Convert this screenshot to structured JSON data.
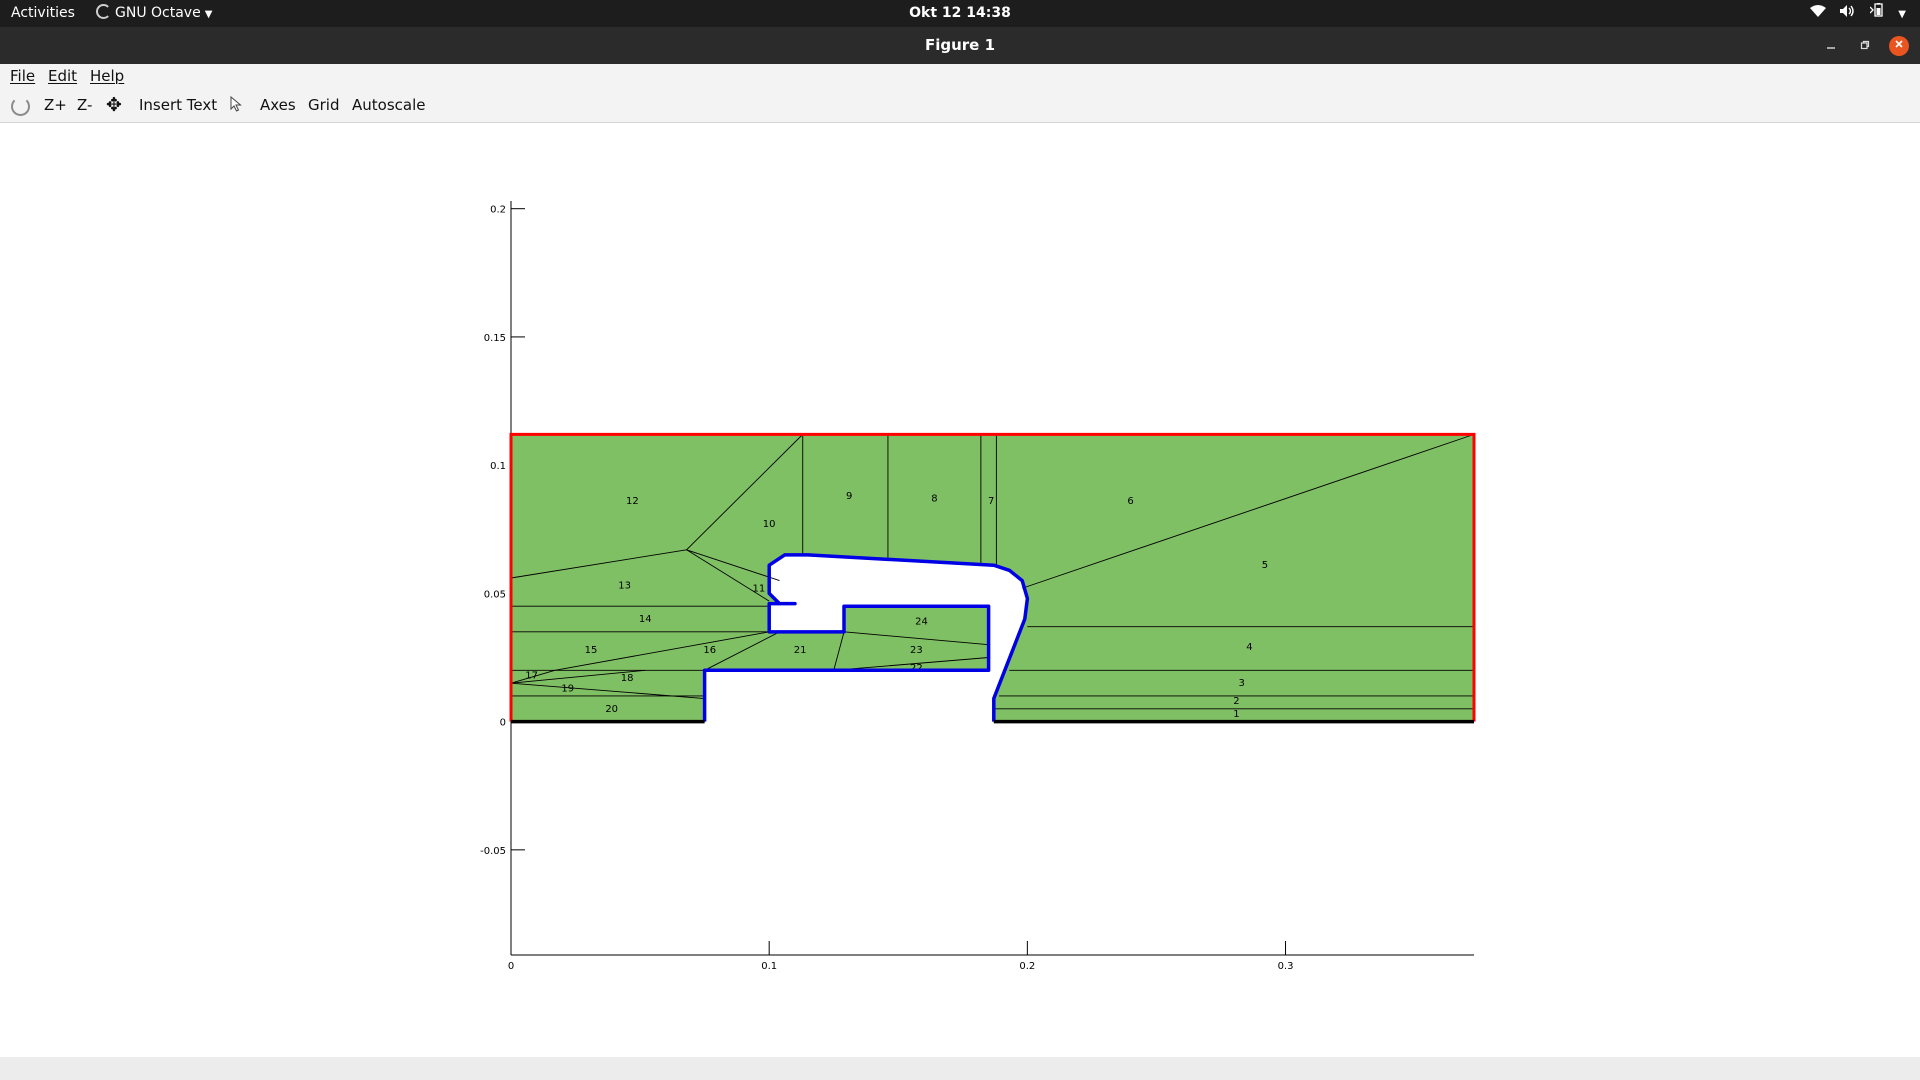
{
  "topbar": {
    "activities": "Activities",
    "app_name": "GNU Octave",
    "clock": "Okt 12  14:38"
  },
  "window": {
    "title": "Figure 1"
  },
  "menubar": {
    "file": "File",
    "edit": "Edit",
    "help": "Help"
  },
  "toolbar": {
    "zoom_in": "Z+",
    "zoom_out": "Z-",
    "insert_text": "Insert Text",
    "axes": "Axes",
    "grid": "Grid",
    "autoscale": "Autoscale"
  },
  "icons": {
    "rotate": "rotate-icon",
    "pan": "pan-move-icon",
    "select": "select-pointer-icon",
    "wifi": "wifi-icon",
    "volume": "volume-icon",
    "battery": "battery-icon"
  },
  "colors": {
    "fill": "#80c064",
    "outer_boundary": "#ff0000",
    "inner_boundary": "#0000e6",
    "close_button": "#e95420"
  },
  "chart_data": {
    "type": "mesh",
    "x_ticks": [
      "0",
      "0.1",
      "0.2",
      "0.3"
    ],
    "y_ticks": [
      "0.2",
      "0.15",
      "0.1",
      "0.05",
      "0",
      "-0.05"
    ],
    "xlim": [
      0,
      0.373
    ],
    "ylim": [
      -0.091,
      0.203
    ],
    "outer_boundary": [
      [
        0,
        0.112
      ],
      [
        0.373,
        0.112
      ],
      [
        0.373,
        0
      ],
      [
        0.187,
        0
      ],
      [
        0.187,
        0.009
      ],
      [
        0.199,
        0.04
      ],
      [
        0.2,
        0.048
      ],
      [
        0.198,
        0.055
      ],
      [
        0.193,
        0.059
      ],
      [
        0.187,
        0.061
      ],
      [
        0.115,
        0.065
      ],
      [
        0.106,
        0.065
      ],
      [
        0.1,
        0.061
      ],
      [
        0.1,
        0.05
      ],
      [
        0.104,
        0.046
      ],
      [
        0.11,
        0.046
      ],
      [
        0.1,
        0.046
      ],
      [
        0.1,
        0.035
      ],
      [
        0.129,
        0.035
      ],
      [
        0.129,
        0.045
      ],
      [
        0.185,
        0.045
      ],
      [
        0.185,
        0.02
      ],
      [
        0.075,
        0.02
      ],
      [
        0.075,
        0
      ],
      [
        0,
        0
      ]
    ],
    "inner_boundary": [
      [
        0.075,
        0
      ],
      [
        0.075,
        0.02
      ],
      [
        0.1,
        0.02
      ],
      [
        0.125,
        0.02
      ],
      [
        0.185,
        0.02
      ],
      [
        0.185,
        0.045
      ],
      [
        0.129,
        0.045
      ],
      [
        0.129,
        0.035
      ],
      [
        0.1,
        0.035
      ],
      [
        0.1,
        0.046
      ],
      [
        0.11,
        0.046
      ],
      [
        0.104,
        0.046
      ],
      [
        0.1,
        0.05
      ],
      [
        0.1,
        0.061
      ],
      [
        0.106,
        0.065
      ],
      [
        0.115,
        0.065
      ],
      [
        0.187,
        0.061
      ],
      [
        0.193,
        0.059
      ],
      [
        0.198,
        0.055
      ],
      [
        0.2,
        0.048
      ],
      [
        0.199,
        0.04
      ],
      [
        0.187,
        0.009
      ],
      [
        0.187,
        0
      ]
    ],
    "red_boundary": [
      [
        0,
        0
      ],
      [
        0,
        0.112
      ],
      [
        0.373,
        0.112
      ],
      [
        0.373,
        0
      ]
    ],
    "bottom_edges": [
      [
        [
          0,
          0
        ],
        [
          0.075,
          0
        ]
      ],
      [
        [
          0.187,
          0
        ],
        [
          0.373,
          0
        ]
      ]
    ],
    "mesh_edges": [
      [
        [
          0,
          0.056
        ],
        [
          0.068,
          0.067
        ]
      ],
      [
        [
          0.068,
          0.067
        ],
        [
          0.113,
          0.112
        ]
      ],
      [
        [
          0.068,
          0.067
        ],
        [
          0.1,
          0.047
        ]
      ],
      [
        [
          0.068,
          0.067
        ],
        [
          0.104,
          0.055
        ]
      ],
      [
        [
          0.113,
          0.112
        ],
        [
          0.113,
          0.065
        ]
      ],
      [
        [
          0.146,
          0.112
        ],
        [
          0.146,
          0.063
        ]
      ],
      [
        [
          0.182,
          0.112
        ],
        [
          0.182,
          0.061
        ]
      ],
      [
        [
          0.188,
          0.112
        ],
        [
          0.188,
          0.061
        ]
      ],
      [
        [
          0.198,
          0.052
        ],
        [
          0.373,
          0.112
        ]
      ],
      [
        [
          0.2,
          0.037
        ],
        [
          0.373,
          0.037
        ]
      ],
      [
        [
          0.193,
          0.02
        ],
        [
          0.373,
          0.02
        ]
      ],
      [
        [
          0.189,
          0.01
        ],
        [
          0.373,
          0.01
        ]
      ],
      [
        [
          0.187,
          0.005
        ],
        [
          0.373,
          0.005
        ]
      ],
      [
        [
          0,
          0.045
        ],
        [
          0.1,
          0.045
        ]
      ],
      [
        [
          0,
          0.035
        ],
        [
          0.1,
          0.035
        ]
      ],
      [
        [
          0,
          0.02
        ],
        [
          0.075,
          0.02
        ]
      ],
      [
        [
          0.017,
          0.02
        ],
        [
          0.1,
          0.035
        ]
      ],
      [
        [
          0,
          0.015
        ],
        [
          0.017,
          0.02
        ]
      ],
      [
        [
          0,
          0.015
        ],
        [
          0.075,
          0.009
        ]
      ],
      [
        [
          0,
          0.015
        ],
        [
          0.052,
          0.02
        ]
      ],
      [
        [
          0,
          0.01
        ],
        [
          0.075,
          0.01
        ]
      ],
      [
        [
          0.075,
          0.02
        ],
        [
          0.104,
          0.035
        ]
      ],
      [
        [
          0.125,
          0.02
        ],
        [
          0.129,
          0.035
        ]
      ],
      [
        [
          0.129,
          0.035
        ],
        [
          0.185,
          0.03
        ]
      ],
      [
        [
          0.125,
          0.02
        ],
        [
          0.185,
          0.025
        ]
      ]
    ],
    "region_labels": [
      {
        "text": "1",
        "x": 0.281,
        "y": 0.003
      },
      {
        "text": "2",
        "x": 0.281,
        "y": 0.008
      },
      {
        "text": "3",
        "x": 0.283,
        "y": 0.015
      },
      {
        "text": "4",
        "x": 0.286,
        "y": 0.029
      },
      {
        "text": "5",
        "x": 0.292,
        "y": 0.061
      },
      {
        "text": "6",
        "x": 0.24,
        "y": 0.086
      },
      {
        "text": "7",
        "x": 0.186,
        "y": 0.086
      },
      {
        "text": "8",
        "x": 0.164,
        "y": 0.087
      },
      {
        "text": "9",
        "x": 0.131,
        "y": 0.088
      },
      {
        "text": "10",
        "x": 0.1,
        "y": 0.077
      },
      {
        "text": "11",
        "x": 0.096,
        "y": 0.052
      },
      {
        "text": "12",
        "x": 0.047,
        "y": 0.086
      },
      {
        "text": "13",
        "x": 0.044,
        "y": 0.053
      },
      {
        "text": "14",
        "x": 0.052,
        "y": 0.04
      },
      {
        "text": "15",
        "x": 0.031,
        "y": 0.028
      },
      {
        "text": "16",
        "x": 0.077,
        "y": 0.028
      },
      {
        "text": "17",
        "x": 0.008,
        "y": 0.018
      },
      {
        "text": "18",
        "x": 0.045,
        "y": 0.017
      },
      {
        "text": "19",
        "x": 0.022,
        "y": 0.013
      },
      {
        "text": "20",
        "x": 0.039,
        "y": 0.005
      },
      {
        "text": "21",
        "x": 0.112,
        "y": 0.028
      },
      {
        "text": "22",
        "x": 0.157,
        "y": 0.021
      },
      {
        "text": "23",
        "x": 0.157,
        "y": 0.028
      },
      {
        "text": "24",
        "x": 0.159,
        "y": 0.039
      }
    ]
  }
}
